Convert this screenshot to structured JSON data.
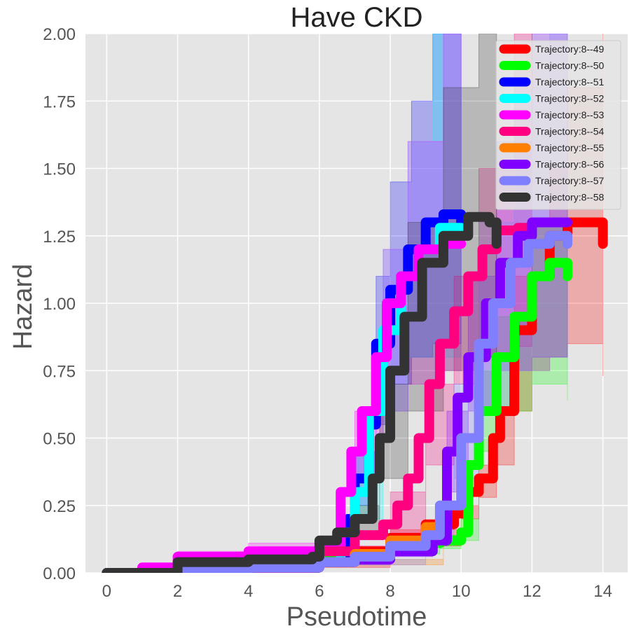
{
  "chart_data": {
    "type": "line",
    "title": "Have CKD",
    "xlabel": "Pseudotime",
    "ylabel": "Hazard",
    "xlim": [
      -0.6,
      14.7
    ],
    "ylim": [
      0,
      2.0
    ],
    "x_ticks": [
      0,
      2,
      4,
      6,
      8,
      10,
      12,
      14
    ],
    "y_ticks": [
      0.0,
      0.25,
      0.5,
      0.75,
      1.0,
      1.25,
      1.5,
      1.75,
      2.0
    ],
    "x_tick_labels": [
      "0",
      "2",
      "4",
      "6",
      "8",
      "10",
      "12",
      "14"
    ],
    "y_tick_labels": [
      "0.00",
      "0.25",
      "0.50",
      "0.75",
      "1.00",
      "1.25",
      "1.50",
      "1.75",
      "2.00"
    ],
    "grid": true,
    "legend_position": "top-right",
    "series": [
      {
        "name": "Trajectory:8--49",
        "color": "#ff0000",
        "points": [
          [
            0,
            0
          ],
          [
            2,
            0.01
          ],
          [
            4,
            0.02
          ],
          [
            6,
            0.04
          ],
          [
            7,
            0.08
          ],
          [
            8,
            0.13
          ],
          [
            9,
            0.18
          ],
          [
            9.8,
            0.22
          ],
          [
            10.2,
            0.3
          ],
          [
            10.5,
            0.35
          ],
          [
            10.9,
            0.5
          ],
          [
            11.1,
            0.6
          ],
          [
            11.5,
            0.9
          ],
          [
            12,
            1.1
          ],
          [
            12.5,
            1.25
          ],
          [
            13,
            1.3
          ],
          [
            13.6,
            1.3
          ],
          [
            14,
            1.22
          ]
        ],
        "band": [
          [
            0,
            0,
            0
          ],
          [
            4,
            0.01,
            0.03
          ],
          [
            6,
            0.02,
            0.06
          ],
          [
            8,
            0.1,
            0.16
          ],
          [
            10,
            0.2,
            0.25
          ],
          [
            10.5,
            0.28,
            0.4
          ],
          [
            11,
            0.4,
            0.6
          ],
          [
            11.5,
            0.6,
            1.1
          ],
          [
            12,
            0.75,
            1.3
          ],
          [
            12.5,
            0.8,
            1.5
          ],
          [
            13,
            0.85,
            1.8
          ],
          [
            14,
            0.73,
            2.0
          ]
        ]
      },
      {
        "name": "Trajectory:8--50",
        "color": "#00ff00",
        "points": [
          [
            0,
            0
          ],
          [
            2,
            0.01
          ],
          [
            4,
            0.03
          ],
          [
            6,
            0.05
          ],
          [
            7,
            0.07
          ],
          [
            8,
            0.09
          ],
          [
            9,
            0.11
          ],
          [
            9.4,
            0.12
          ],
          [
            10,
            0.15
          ],
          [
            10.2,
            0.4
          ],
          [
            10.5,
            0.6
          ],
          [
            11,
            0.8
          ],
          [
            11.5,
            0.95
          ],
          [
            12,
            1.1
          ],
          [
            12.5,
            1.15
          ],
          [
            13,
            1.1
          ]
        ],
        "band": [
          [
            0,
            0,
            0
          ],
          [
            6,
            0.04,
            0.06
          ],
          [
            8,
            0.07,
            0.11
          ],
          [
            9.4,
            0.09,
            0.14
          ],
          [
            10,
            0.12,
            0.2
          ],
          [
            10.5,
            0.45,
            0.75
          ],
          [
            11,
            0.6,
            0.95
          ],
          [
            12,
            0.7,
            1.3
          ],
          [
            13,
            0.64,
            1.6
          ]
        ]
      },
      {
        "name": "Trajectory:8--51",
        "color": "#0000ff",
        "points": [
          [
            0,
            0
          ],
          [
            2,
            0.01
          ],
          [
            4,
            0.02
          ],
          [
            6,
            0.04
          ],
          [
            6.8,
            0.2
          ],
          [
            7,
            0.35
          ],
          [
            7.4,
            0.55
          ],
          [
            7.6,
            0.85
          ],
          [
            8,
            1.05
          ],
          [
            8.5,
            1.2
          ],
          [
            9,
            1.3
          ],
          [
            9.5,
            1.33
          ],
          [
            10,
            1.28
          ]
        ],
        "band": [
          [
            0,
            0,
            0
          ],
          [
            6,
            0.03,
            0.05
          ],
          [
            7,
            0.25,
            0.45
          ],
          [
            7.6,
            0.55,
            1.1
          ],
          [
            8,
            0.7,
            1.45
          ],
          [
            8.6,
            0.8,
            1.75
          ],
          [
            9.2,
            0.85,
            2.0
          ],
          [
            10,
            0.85,
            2.0
          ]
        ]
      },
      {
        "name": "Trajectory:8--52",
        "color": "#00ffff",
        "points": [
          [
            0,
            0
          ],
          [
            2,
            0.01
          ],
          [
            4,
            0.02
          ],
          [
            6,
            0.04
          ],
          [
            6.6,
            0.15
          ],
          [
            7,
            0.3
          ],
          [
            7.4,
            0.6
          ],
          [
            7.8,
            0.9
          ],
          [
            8.3,
            1.1
          ],
          [
            8.8,
            1.2
          ],
          [
            9.4,
            1.28
          ],
          [
            10,
            1.25
          ]
        ],
        "band": [
          [
            0,
            0,
            0
          ],
          [
            6,
            0.03,
            0.05
          ],
          [
            7,
            0.2,
            0.45
          ],
          [
            7.8,
            0.6,
            1.2
          ],
          [
            8.5,
            0.8,
            1.6
          ],
          [
            9.2,
            0.8,
            2.0
          ],
          [
            10,
            0.82,
            2.0
          ]
        ]
      },
      {
        "name": "Trajectory:8--53",
        "color": "#ff00ff",
        "points": [
          [
            0,
            0
          ],
          [
            1,
            0.02
          ],
          [
            2,
            0.06
          ],
          [
            4,
            0.08
          ],
          [
            6,
            0.1
          ],
          [
            6.6,
            0.3
          ],
          [
            6.9,
            0.45
          ],
          [
            7.2,
            0.6
          ],
          [
            7.6,
            0.8
          ],
          [
            7.9,
            1.0
          ],
          [
            8.3,
            1.1
          ],
          [
            8.8,
            1.2
          ],
          [
            9.5,
            1.22
          ],
          [
            10,
            1.22
          ]
        ],
        "band": [
          [
            0,
            0,
            0
          ],
          [
            2,
            0.04,
            0.08
          ],
          [
            4,
            0.06,
            0.11
          ],
          [
            6,
            0.08,
            0.13
          ],
          [
            7,
            0.35,
            0.6
          ],
          [
            7.8,
            0.6,
            1.2
          ],
          [
            8.5,
            0.7,
            1.6
          ],
          [
            9.5,
            0.75,
            2.0
          ],
          [
            10,
            0.8,
            2.0
          ]
        ]
      },
      {
        "name": "Trajectory:8--54",
        "color": "#ff0080",
        "points": [
          [
            0,
            0
          ],
          [
            2,
            0.01
          ],
          [
            4,
            0.02
          ],
          [
            6,
            0.08
          ],
          [
            7,
            0.14
          ],
          [
            7.8,
            0.18
          ],
          [
            8.2,
            0.25
          ],
          [
            8.5,
            0.35
          ],
          [
            8.8,
            0.5
          ],
          [
            9.1,
            0.7
          ],
          [
            9.4,
            0.85
          ],
          [
            9.8,
            0.97
          ],
          [
            10.2,
            1.1
          ],
          [
            10.6,
            1.2
          ],
          [
            11,
            1.27
          ],
          [
            11.6,
            1.28
          ],
          [
            12,
            1.28
          ]
        ],
        "band": [
          [
            0,
            0,
            0
          ],
          [
            6,
            0.06,
            0.1
          ],
          [
            8,
            0.15,
            0.3
          ],
          [
            9,
            0.4,
            0.7
          ],
          [
            9.8,
            0.7,
            1.1
          ],
          [
            10.5,
            0.8,
            1.5
          ],
          [
            11.5,
            0.84,
            2.0
          ],
          [
            12,
            0.84,
            2.0
          ]
        ]
      },
      {
        "name": "Trajectory:8--55",
        "color": "#ff8000",
        "points": [
          [
            0,
            0
          ],
          [
            2,
            0.01
          ],
          [
            4,
            0.02
          ],
          [
            6,
            0.04
          ],
          [
            7,
            0.07
          ],
          [
            8,
            0.12
          ],
          [
            9,
            0.17
          ],
          [
            9.5,
            0.19
          ]
        ],
        "band": [
          [
            0,
            0,
            0
          ],
          [
            6,
            0.03,
            0.05
          ],
          [
            9.5,
            0.16,
            0.22
          ]
        ]
      },
      {
        "name": "Trajectory:8--56",
        "color": "#8000ff",
        "points": [
          [
            0,
            0
          ],
          [
            2,
            0.01
          ],
          [
            4,
            0.02
          ],
          [
            6,
            0.04
          ],
          [
            7,
            0.05
          ],
          [
            8,
            0.08
          ],
          [
            9.2,
            0.12
          ],
          [
            9.6,
            0.45
          ],
          [
            9.9,
            0.65
          ],
          [
            10.2,
            0.8
          ],
          [
            10.7,
            1.0
          ],
          [
            11.1,
            1.15
          ],
          [
            11.6,
            1.25
          ],
          [
            12,
            1.3
          ],
          [
            13,
            1.3
          ]
        ],
        "band": [
          [
            0,
            0,
            0
          ],
          [
            6,
            0.03,
            0.05
          ],
          [
            8,
            0.06,
            0.1
          ],
          [
            9.2,
            0.1,
            0.15
          ],
          [
            9.6,
            0.3,
            0.6
          ],
          [
            10.2,
            0.6,
            1.1
          ],
          [
            11,
            0.75,
            1.6
          ],
          [
            12,
            0.8,
            2.0
          ],
          [
            13,
            0.8,
            2.0
          ]
        ]
      },
      {
        "name": "Trajectory:8--57",
        "color": "#8080ff",
        "points": [
          [
            0,
            0
          ],
          [
            2,
            0.01
          ],
          [
            4,
            0.02
          ],
          [
            6,
            0.04
          ],
          [
            7,
            0.06
          ],
          [
            8,
            0.1
          ],
          [
            9,
            0.14
          ],
          [
            9.4,
            0.25
          ],
          [
            10,
            0.5
          ],
          [
            10.5,
            0.85
          ],
          [
            10.9,
            1.0
          ],
          [
            11.4,
            1.15
          ],
          [
            11.9,
            1.22
          ],
          [
            12.5,
            1.25
          ],
          [
            13,
            1.22
          ]
        ],
        "band": [
          [
            0,
            0,
            0
          ],
          [
            6,
            0.03,
            0.05
          ],
          [
            9,
            0.12,
            0.17
          ],
          [
            9.8,
            0.35,
            0.7
          ],
          [
            10.5,
            0.6,
            1.3
          ],
          [
            11.5,
            0.75,
            1.8
          ],
          [
            12.5,
            0.8,
            2.0
          ],
          [
            13,
            0.8,
            2.0
          ]
        ]
      },
      {
        "name": "Trajectory:8--58",
        "color": "#333333",
        "points": [
          [
            0,
            0
          ],
          [
            2,
            0.04
          ],
          [
            4,
            0.05
          ],
          [
            5.8,
            0.06
          ],
          [
            6,
            0.12
          ],
          [
            6.5,
            0.15
          ],
          [
            7,
            0.2
          ],
          [
            7.5,
            0.35
          ],
          [
            7.7,
            0.5
          ],
          [
            8,
            0.75
          ],
          [
            8.4,
            0.95
          ],
          [
            8.9,
            1.15
          ],
          [
            9.5,
            1.25
          ],
          [
            10.2,
            1.32
          ],
          [
            10.8,
            1.3
          ],
          [
            11,
            1.22
          ]
        ],
        "band": [
          [
            0,
            0,
            0
          ],
          [
            2,
            0.03,
            0.05
          ],
          [
            5.8,
            0.05,
            0.07
          ],
          [
            7,
            0.15,
            0.25
          ],
          [
            7.7,
            0.35,
            0.7
          ],
          [
            8.5,
            0.6,
            1.3
          ],
          [
            9.5,
            0.75,
            1.8
          ],
          [
            10.5,
            0.8,
            2.0
          ],
          [
            11,
            0.8,
            2.0
          ]
        ]
      }
    ]
  }
}
